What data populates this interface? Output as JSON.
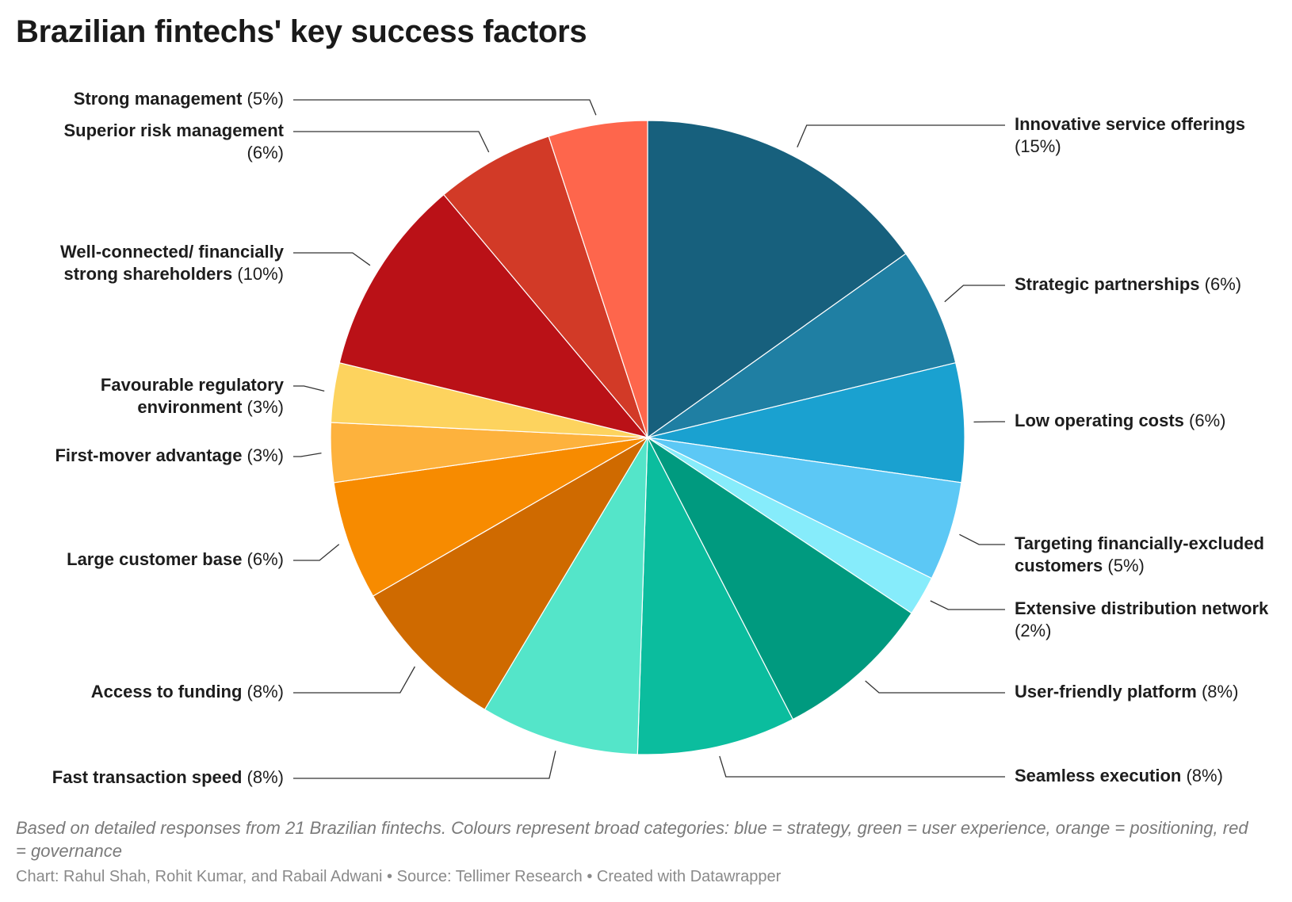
{
  "title": "Brazilian fintechs' key success factors",
  "notes": "Based on detailed responses from 21 Brazilian fintechs. Colours represent broad categories: blue = strategy, green = user experience, orange = positioning, red = governance",
  "credits": "Chart: Rahul Shah, Rohit Kumar, and Rabail Adwani • Source: Tellimer Research • Created with Datawrapper",
  "chart_data": {
    "type": "pie",
    "start_angle_deg": 0,
    "direction": "clockwise",
    "slices": [
      {
        "label": "Innovative service offerings",
        "value": 15,
        "pct_label": "(15%)",
        "color": "#17607d"
      },
      {
        "label": "Strategic partnerships",
        "value": 6,
        "pct_label": "(6%)",
        "color": "#1f7fa3"
      },
      {
        "label": "Low operating costs",
        "value": 6,
        "pct_label": "(6%)",
        "color": "#1aa1d0"
      },
      {
        "label": "Targeting financially-excluded customers",
        "value": 5,
        "pct_label": "(5%)",
        "color": "#5cc8f5"
      },
      {
        "label": "Extensive distribution network",
        "value": 2,
        "pct_label": "(2%)",
        "color": "#86ecfb"
      },
      {
        "label": "User-friendly platform",
        "value": 8,
        "pct_label": "(8%)",
        "color": "#009a7f"
      },
      {
        "label": "Seamless execution",
        "value": 8,
        "pct_label": "(8%)",
        "color": "#0bbd9e"
      },
      {
        "label": "Fast transaction speed",
        "value": 8,
        "pct_label": "(8%)",
        "color": "#54e5c9"
      },
      {
        "label": "Access to funding",
        "value": 8,
        "pct_label": "(8%)",
        "color": "#cf6a00"
      },
      {
        "label": "Large customer base",
        "value": 6,
        "pct_label": "(6%)",
        "color": "#f78b00"
      },
      {
        "label": "First-mover advantage",
        "value": 3,
        "pct_label": "(3%)",
        "color": "#fdb23d"
      },
      {
        "label": "Favourable regulatory environment",
        "value": 3,
        "pct_label": "(3%)",
        "color": "#fdd35e"
      },
      {
        "label": "Well-connected/ financially strong shareholders",
        "value": 10,
        "pct_label": "(10%)",
        "color": "#ba1117"
      },
      {
        "label": "Superior risk management",
        "value": 6,
        "pct_label": "(6%)",
        "color": "#d23a27"
      },
      {
        "label": "Strong management",
        "value": 5,
        "pct_label": "(5%)",
        "color": "#fe664c"
      }
    ]
  }
}
